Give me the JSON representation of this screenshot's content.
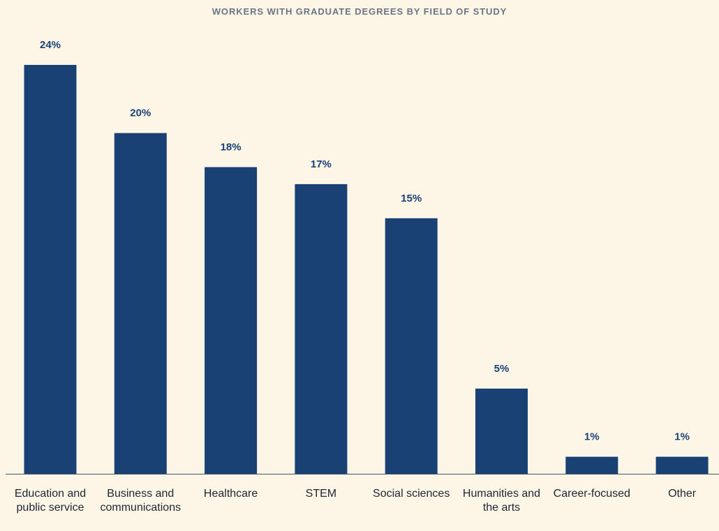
{
  "chart_data": {
    "type": "bar",
    "title": "WORKERS WITH GRADUATE DEGREES BY FIELD OF STUDY",
    "categories": [
      "Education and public service",
      "Business and communications",
      "Healthcare",
      "STEM",
      "Social sciences",
      "Humanities and the arts",
      "Career-focused",
      "Other"
    ],
    "values": [
      24,
      20,
      18,
      17,
      15,
      5,
      1,
      1
    ],
    "value_labels": [
      "24%",
      "20%",
      "18%",
      "17%",
      "15%",
      "5%",
      "1%",
      "1%"
    ],
    "value_unit": "%",
    "xlabel": "",
    "ylabel": "",
    "ylim": [
      0,
      24
    ],
    "grid": false,
    "legend": "none",
    "bar_color": "#1a4174",
    "value_label_color": "#1a4174",
    "axis_color": "#475064",
    "background_color": "#fdf5e6"
  }
}
